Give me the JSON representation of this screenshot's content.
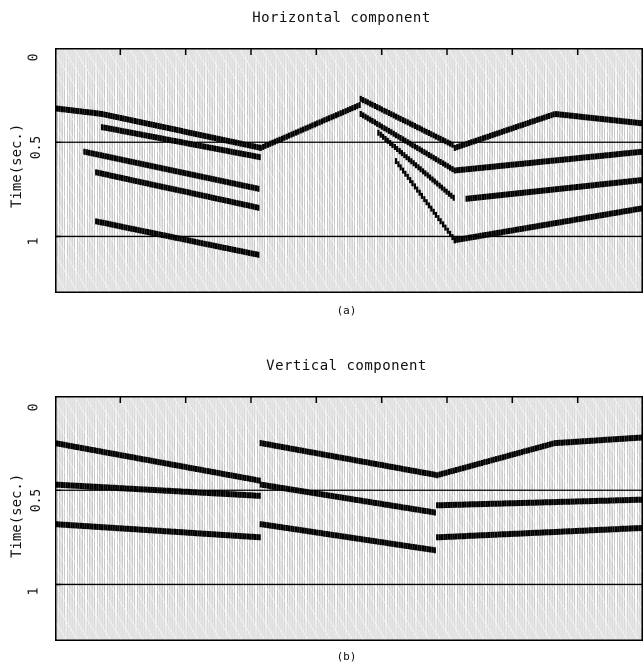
{
  "chart_data": [
    {
      "type": "heatmap",
      "title": "Horizontal component",
      "ylabel": "Time(sec.)",
      "yticks": [
        "0",
        "0.5",
        "1"
      ],
      "ylim": [
        0,
        1.3
      ],
      "caption": "(a)",
      "grid_lines_y": [
        0.5,
        1.0
      ],
      "events": [
        {
          "x": [
            0.0,
            0.08,
            0.35
          ],
          "t": [
            0.32,
            0.35,
            0.53
          ]
        },
        {
          "x": [
            0.08,
            0.35
          ],
          "t": [
            0.42,
            0.58
          ]
        },
        {
          "x": [
            0.05,
            0.35
          ],
          "t": [
            0.55,
            0.75
          ]
        },
        {
          "x": [
            0.07,
            0.35
          ],
          "t": [
            0.66,
            0.85
          ]
        },
        {
          "x": [
            0.07,
            0.35
          ],
          "t": [
            0.92,
            1.1
          ]
        },
        {
          "x": [
            0.35,
            0.52
          ],
          "t": [
            0.53,
            0.3
          ]
        },
        {
          "x": [
            0.52,
            0.68
          ],
          "t": [
            0.27,
            0.52
          ]
        },
        {
          "x": [
            0.52,
            0.68
          ],
          "t": [
            0.35,
            0.65
          ]
        },
        {
          "x": [
            0.55,
            0.68
          ],
          "t": [
            0.45,
            0.8
          ]
        },
        {
          "x": [
            0.58,
            0.68
          ],
          "t": [
            0.6,
            1.02
          ]
        },
        {
          "x": [
            0.68,
            0.85,
            1.0
          ],
          "t": [
            0.53,
            0.35,
            0.4
          ]
        },
        {
          "x": [
            0.68,
            1.0
          ],
          "t": [
            0.65,
            0.55
          ]
        },
        {
          "x": [
            0.7,
            1.0
          ],
          "t": [
            0.8,
            0.7
          ]
        },
        {
          "x": [
            0.68,
            1.0
          ],
          "t": [
            1.02,
            0.85
          ]
        }
      ]
    },
    {
      "type": "heatmap",
      "title": "Vertical component",
      "ylabel": "Time(sec.)",
      "yticks": [
        "0",
        "0.5",
        "1"
      ],
      "ylim": [
        0,
        1.3
      ],
      "caption": "(b)",
      "grid_lines_y": [
        0.5,
        1.0
      ],
      "events": [
        {
          "x": [
            0.0,
            0.35
          ],
          "t": [
            0.25,
            0.45
          ]
        },
        {
          "x": [
            0.0,
            0.35
          ],
          "t": [
            0.47,
            0.53
          ]
        },
        {
          "x": [
            0.0,
            0.35
          ],
          "t": [
            0.68,
            0.75
          ]
        },
        {
          "x": [
            0.35,
            0.65
          ],
          "t": [
            0.25,
            0.42
          ]
        },
        {
          "x": [
            0.35,
            0.65
          ],
          "t": [
            0.47,
            0.62
          ]
        },
        {
          "x": [
            0.35,
            0.65
          ],
          "t": [
            0.68,
            0.82
          ]
        },
        {
          "x": [
            0.65,
            0.85,
            1.0
          ],
          "t": [
            0.42,
            0.25,
            0.22
          ]
        },
        {
          "x": [
            0.65,
            1.0
          ],
          "t": [
            0.58,
            0.55
          ]
        },
        {
          "x": [
            0.65,
            1.0
          ],
          "t": [
            0.75,
            0.7
          ]
        }
      ]
    }
  ]
}
